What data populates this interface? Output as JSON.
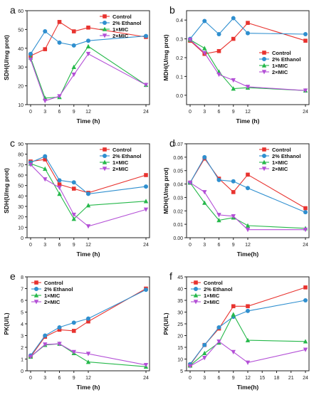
{
  "colors": {
    "Control": "#e8332f",
    "2% Ethanol": "#2f8fcf",
    "1×MIC": "#25b84a",
    "2×MIC": "#b34fd6",
    "axis": "#222222"
  },
  "chart_data": [
    {
      "panel_label": "a",
      "type": "line",
      "xlabel": "Time (h)",
      "ylabel": "SDH(U/mg prot)",
      "x": [
        0,
        3,
        6,
        9,
        12,
        24
      ],
      "xticks": [
        "0",
        "3",
        "6",
        "9",
        "12",
        "24"
      ],
      "ylim": [
        10,
        60
      ],
      "yticks": [
        10,
        20,
        30,
        40,
        50,
        60
      ],
      "legend_position": "top-right",
      "series": [
        {
          "name": "Control",
          "marker": "square",
          "values": [
            36,
            39.5,
            54,
            49,
            51,
            46
          ]
        },
        {
          "name": "2% Ethanol",
          "marker": "circle",
          "values": [
            37,
            49,
            43,
            41.5,
            44,
            46.5
          ]
        },
        {
          "name": "1×MIC",
          "marker": "triangle-up",
          "values": [
            35,
            13.5,
            14,
            30,
            41,
            20.5
          ]
        },
        {
          "name": "2×MIC",
          "marker": "triangle-down",
          "values": [
            34,
            12,
            14.5,
            26,
            37,
            20.5
          ]
        }
      ]
    },
    {
      "panel_label": "b",
      "type": "line",
      "xlabel": "Time (h)",
      "ylabel": "MDH(U/mg prot)",
      "x": [
        0,
        3,
        6,
        9,
        12,
        24
      ],
      "xticks": [
        "0",
        "3",
        "6",
        "9",
        "12",
        "24"
      ],
      "ylim": [
        -0.05,
        0.45
      ],
      "yticks": [
        0.0,
        0.1,
        0.2,
        0.3,
        0.4
      ],
      "legend_position": "right",
      "series": [
        {
          "name": "Control",
          "marker": "square",
          "values": [
            0.29,
            0.22,
            0.235,
            0.3,
            0.385,
            0.29
          ]
        },
        {
          "name": "2% Ethanol",
          "marker": "circle",
          "values": [
            0.3,
            0.395,
            0.325,
            0.41,
            0.33,
            0.325
          ]
        },
        {
          "name": "1×MIC",
          "marker": "triangle-up",
          "values": [
            0.295,
            0.25,
            0.125,
            0.035,
            0.04,
            0.025
          ]
        },
        {
          "name": "2×MIC",
          "marker": "triangle-down",
          "values": [
            0.295,
            0.225,
            0.11,
            0.08,
            0.045,
            0.025
          ]
        }
      ]
    },
    {
      "panel_label": "c",
      "type": "line",
      "xlabel": "Time (h)",
      "ylabel": "SDH(U/mg prot)",
      "x": [
        0,
        3,
        6,
        9,
        12,
        24
      ],
      "xticks": [
        "0",
        "3",
        "6",
        "9",
        "12",
        "24"
      ],
      "ylim": [
        0,
        90
      ],
      "yticks": [
        0,
        10,
        20,
        30,
        40,
        50,
        60,
        70,
        80,
        90
      ],
      "legend_position": "top-right",
      "series": [
        {
          "name": "Control",
          "marker": "square",
          "values": [
            73,
            75,
            51,
            47,
            43,
            60
          ]
        },
        {
          "name": "2% Ethanol",
          "marker": "circle",
          "values": [
            72,
            78,
            55,
            53,
            42,
            49
          ]
        },
        {
          "name": "1×MIC",
          "marker": "triangle-up",
          "values": [
            71,
            66,
            42,
            18,
            31,
            35
          ]
        },
        {
          "name": "2×MIC",
          "marker": "triangle-down",
          "values": [
            70,
            56,
            48,
            22,
            11,
            27
          ]
        }
      ]
    },
    {
      "panel_label": "d",
      "type": "line",
      "xlabel": "Time(h)",
      "ylabel": "MDH(U/mg prot)",
      "x": [
        0,
        3,
        6,
        9,
        12,
        24
      ],
      "xticks": [
        "0",
        "3",
        "6",
        "9",
        "12",
        "24"
      ],
      "ylim": [
        0,
        0.07
      ],
      "yticks": [
        0.0,
        0.01,
        0.02,
        0.03,
        0.04,
        0.05,
        0.06,
        0.07
      ],
      "legend_position": "top-right",
      "series": [
        {
          "name": "Control",
          "marker": "square",
          "values": [
            0.041,
            0.059,
            0.044,
            0.034,
            0.047,
            0.022
          ]
        },
        {
          "name": "2% Ethanol",
          "marker": "circle",
          "values": [
            0.041,
            0.06,
            0.043,
            0.042,
            0.037,
            0.019
          ]
        },
        {
          "name": "1×MIC",
          "marker": "triangle-up",
          "values": [
            0.041,
            0.026,
            0.013,
            0.015,
            0.009,
            0.007
          ]
        },
        {
          "name": "2×MIC",
          "marker": "triangle-down",
          "values": [
            0.041,
            0.034,
            0.017,
            0.016,
            0.006,
            0.006
          ]
        }
      ]
    },
    {
      "panel_label": "e",
      "type": "line",
      "xlabel": "Time (h)",
      "ylabel": "PK(U/L)",
      "x": [
        0,
        3,
        6,
        9,
        12,
        24
      ],
      "xticks": [
        "0",
        "3",
        "6",
        "9",
        "12",
        "24"
      ],
      "ylim": [
        0,
        8
      ],
      "yticks": [
        0,
        1,
        2,
        3,
        4,
        5,
        6,
        7,
        8
      ],
      "legend_position": "top-left",
      "series": [
        {
          "name": "Control",
          "marker": "square",
          "values": [
            1.2,
            2.9,
            3.5,
            3.4,
            4.2,
            7.0
          ]
        },
        {
          "name": "2% Ethanol",
          "marker": "circle",
          "values": [
            1.3,
            3.0,
            3.7,
            4.1,
            4.45,
            6.9
          ]
        },
        {
          "name": "1×MIC",
          "marker": "triangle-up",
          "values": [
            1.2,
            2.2,
            2.3,
            1.5,
            0.75,
            0.35
          ]
        },
        {
          "name": "2×MIC",
          "marker": "triangle-down",
          "values": [
            1.2,
            2.25,
            2.3,
            1.6,
            1.45,
            0.5
          ]
        }
      ]
    },
    {
      "panel_label": "f",
      "type": "line",
      "xlabel": "Time(h)",
      "ylabel": "PK(U/L)",
      "x": [
        0,
        3,
        6,
        9,
        12,
        24
      ],
      "xticks": [
        "0",
        "3",
        "6",
        "9",
        "12",
        "15",
        "18",
        "21",
        "24"
      ],
      "xtick_values": [
        0,
        3,
        6,
        9,
        12,
        15,
        18,
        21,
        24
      ],
      "ylim": [
        5,
        45
      ],
      "yticks": [
        5,
        10,
        15,
        20,
        25,
        30,
        35,
        40,
        45
      ],
      "legend_position": "top-left",
      "series": [
        {
          "name": "Control",
          "marker": "square",
          "values": [
            7.5,
            16,
            23,
            32.5,
            32.5,
            40.5
          ]
        },
        {
          "name": "2% Ethanol",
          "marker": "circle",
          "values": [
            7.8,
            16,
            23.5,
            28,
            30.5,
            35
          ]
        },
        {
          "name": "1×MIC",
          "marker": "triangle-up",
          "values": [
            7.2,
            12.5,
            17,
            29,
            18,
            17.5
          ]
        },
        {
          "name": "2×MIC",
          "marker": "triangle-down",
          "values": [
            7.0,
            10.5,
            17.5,
            13,
            8.5,
            14
          ]
        }
      ]
    }
  ]
}
